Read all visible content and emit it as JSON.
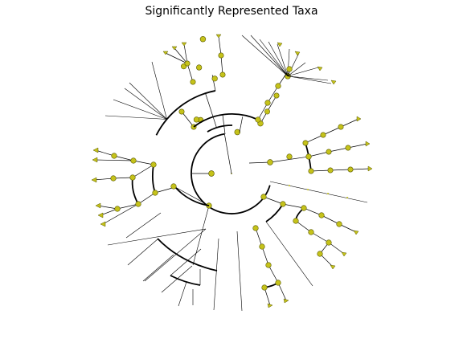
{
  "title": "Significantly Represented Taxa",
  "colors": {
    "node_fill": "#c5c21a",
    "node_stroke": "#5a5a00",
    "edge": "#000000",
    "background": "#ffffff"
  }
}
